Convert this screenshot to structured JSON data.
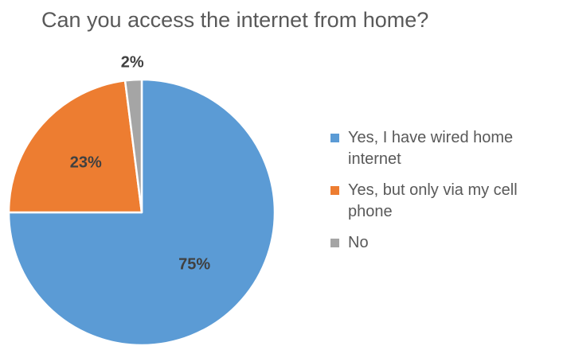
{
  "chart_data": {
    "type": "pie",
    "title": "Can you access the internet from home?",
    "categories": [
      "Yes, I have wired home internet",
      "Yes, but only via my cell phone",
      "No"
    ],
    "values": [
      75,
      23,
      2
    ],
    "data_labels": [
      "75%",
      "23%",
      "2%"
    ],
    "colors": [
      "#5B9BD5",
      "#ED7D31",
      "#A5A5A5"
    ],
    "legend": "right"
  }
}
